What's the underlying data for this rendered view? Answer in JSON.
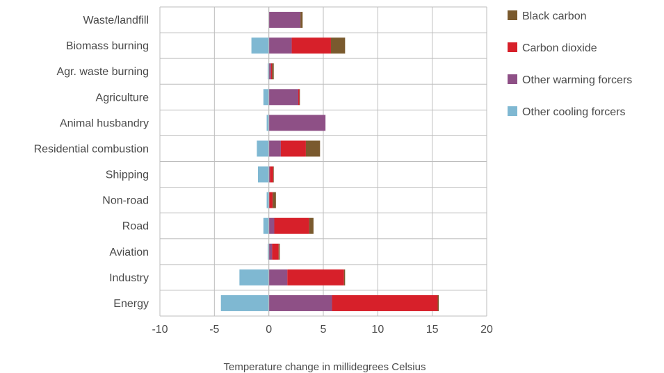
{
  "chart_data": {
    "type": "bar",
    "orientation": "horizontal",
    "stacked": true,
    "title": "",
    "xlabel": "Temperature change in millidegrees Celsius",
    "ylabel": "",
    "xlim": [
      -10,
      20
    ],
    "x_ticks": [
      -10,
      -5,
      0,
      5,
      10,
      15,
      20
    ],
    "grid": "vertical",
    "legend_placement": "right",
    "categories": [
      "Waste/landfill",
      "Biomass burning",
      "Agr. waste burning",
      "Agriculture",
      "Animal husbandry",
      "Residential combustion",
      "Shipping",
      "Non-road",
      "Road",
      "Aviation",
      "Industry",
      "Energy"
    ],
    "series": [
      {
        "name": "Black carbon",
        "color": "#7a5a2e",
        "values": [
          0.2,
          1.3,
          0.15,
          0.05,
          0,
          1.3,
          0.05,
          0.3,
          0.4,
          0.1,
          0.1,
          0.1
        ]
      },
      {
        "name": "Carbon dioxide",
        "color": "#d7202a",
        "values": [
          0,
          3.6,
          0.1,
          0.1,
          0,
          2.3,
          0.3,
          0.3,
          3.2,
          0.6,
          5.2,
          9.7
        ]
      },
      {
        "name": "Other warming forcers",
        "color": "#8e5086",
        "values": [
          2.9,
          2.1,
          0.2,
          2.7,
          5.2,
          1.1,
          0.1,
          0.05,
          0.5,
          0.3,
          1.7,
          5.8
        ]
      },
      {
        "name": "Other cooling forcers",
        "color": "#7fb8d2",
        "values": [
          0,
          -1.6,
          -0.1,
          -0.5,
          -0.2,
          -1.1,
          -1.0,
          -0.2,
          -0.5,
          -0.1,
          -2.7,
          -4.4
        ]
      }
    ],
    "legend_order": [
      "Black carbon",
      "Carbon dioxide",
      "Other warming forcers",
      "Other cooling forcers"
    ],
    "stack_order_positive": [
      "Other warming forcers",
      "Carbon dioxide",
      "Black carbon"
    ],
    "gridline_color": "#bdbdbd"
  }
}
